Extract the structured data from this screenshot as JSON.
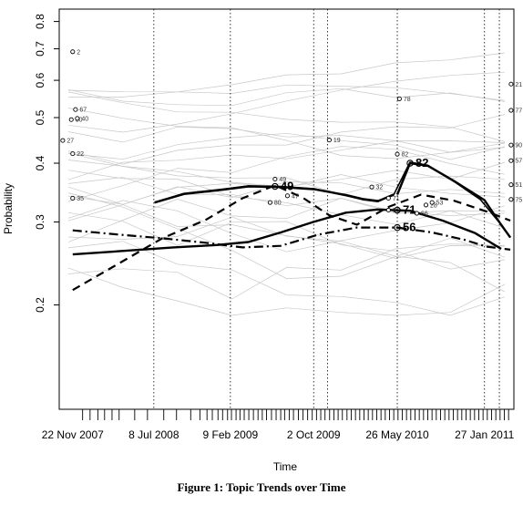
{
  "chart_data": {
    "type": "line",
    "xlabel": "Time",
    "ylabel": "Probability",
    "x_range": [
      "2007-10-15",
      "2011-04-20"
    ],
    "ylim": [
      0.12,
      0.85
    ],
    "y_scale": "log",
    "grid": false,
    "x_ticks": [
      {
        "date": "2007-11-22",
        "label": "22 Nov 2007"
      },
      {
        "date": "2008-07-08",
        "label": "8 Jul 2008"
      },
      {
        "date": "2009-02-09",
        "label": "9 Feb 2009"
      },
      {
        "date": "2009-10-02",
        "label": "2 Oct 2009"
      },
      {
        "date": "2010-05-26",
        "label": "26 May 2010"
      },
      {
        "date": "2011-01-27",
        "label": "27 Jan 2011"
      }
    ],
    "y_ticks": [
      {
        "value": 0.2,
        "label": "0.2"
      },
      {
        "value": 0.3,
        "label": "0.3"
      },
      {
        "value": 0.4,
        "label": "0.4"
      },
      {
        "value": 0.5,
        "label": "0.5"
      },
      {
        "value": 0.6,
        "label": "0.6"
      },
      {
        "value": 0.7,
        "label": "0.7"
      },
      {
        "value": 0.8,
        "label": "0.8"
      }
    ],
    "event_lines": [
      "2008-07-08",
      "2009-02-09",
      "2009-10-02",
      "2009-11-10",
      "2010-05-26",
      "2011-01-27",
      "2011-03-10"
    ],
    "series": [
      {
        "style": "solid-thin",
        "label": "",
        "points": [
          [
            "2008-07-10",
            0.33
          ],
          [
            "2008-10-01",
            0.345
          ],
          [
            "2009-01-15",
            0.352
          ],
          [
            "2009-04-01",
            0.358
          ],
          [
            "2009-07-01",
            0.357
          ],
          [
            "2009-10-05",
            0.353
          ],
          [
            "2009-11-20",
            0.347
          ],
          [
            "2010-01-01",
            0.343
          ],
          [
            "2010-02-20",
            0.336
          ],
          [
            "2010-04-01",
            0.333
          ],
          [
            "2010-05-15",
            0.342
          ],
          [
            "2010-07-01",
            0.402
          ],
          [
            "2010-08-20",
            0.396
          ],
          [
            "2010-11-01",
            0.366
          ],
          [
            "2011-01-15",
            0.335
          ],
          [
            "2011-03-15",
            0.296
          ],
          [
            "2011-04-10",
            0.278
          ]
        ]
      },
      {
        "style": "solid-thick",
        "label": "82",
        "points": [
          [
            "2010-05-26",
            0.343
          ],
          [
            "2010-07-01",
            0.4
          ],
          [
            "2010-08-20",
            0.395
          ],
          [
            "2010-11-01",
            0.367
          ],
          [
            "2011-01-27",
            0.334
          ],
          [
            "2011-03-15",
            0.296
          ],
          [
            "2011-04-10",
            0.278
          ]
        ]
      },
      {
        "style": "solid-thick",
        "label": "49",
        "points": [
          [
            "2008-07-10",
            0.33
          ],
          [
            "2008-10-01",
            0.344
          ],
          [
            "2009-01-15",
            0.351
          ],
          [
            "2009-04-01",
            0.357
          ],
          [
            "2009-07-01",
            0.356
          ],
          [
            "2009-10-05",
            0.352
          ],
          [
            "2009-11-20",
            0.347
          ],
          [
            "2010-01-01",
            0.342
          ],
          [
            "2010-02-20",
            0.335
          ],
          [
            "2010-04-01",
            0.332
          ],
          [
            "2010-05-15",
            0.343
          ]
        ]
      },
      {
        "style": "solid-thick",
        "label": "71",
        "points": [
          [
            "2007-11-22",
            0.256
          ],
          [
            "2008-04-01",
            0.26
          ],
          [
            "2008-09-01",
            0.265
          ],
          [
            "2009-01-01",
            0.268
          ],
          [
            "2009-04-01",
            0.272
          ],
          [
            "2009-07-01",
            0.285
          ],
          [
            "2009-10-01",
            0.3
          ],
          [
            "2010-01-01",
            0.314
          ],
          [
            "2010-04-01",
            0.319
          ],
          [
            "2010-07-01",
            0.317
          ],
          [
            "2010-10-01",
            0.302
          ],
          [
            "2011-01-01",
            0.284
          ],
          [
            "2011-03-15",
            0.263
          ]
        ]
      },
      {
        "style": "dashed",
        "label": "",
        "points": [
          [
            "2007-11-22",
            0.215
          ],
          [
            "2008-04-01",
            0.245
          ],
          [
            "2008-08-01",
            0.277
          ],
          [
            "2008-12-01",
            0.303
          ],
          [
            "2009-03-15",
            0.337
          ],
          [
            "2009-06-15",
            0.359
          ],
          [
            "2009-09-01",
            0.338
          ],
          [
            "2009-11-15",
            0.31
          ],
          [
            "2010-02-01",
            0.296
          ],
          [
            "2010-05-01",
            0.323
          ],
          [
            "2010-08-01",
            0.343
          ],
          [
            "2010-11-01",
            0.333
          ],
          [
            "2011-02-01",
            0.316
          ],
          [
            "2011-04-10",
            0.302
          ]
        ]
      },
      {
        "style": "dashdot",
        "label": "56",
        "points": [
          [
            "2007-11-22",
            0.288
          ],
          [
            "2008-04-01",
            0.282
          ],
          [
            "2008-08-01",
            0.277
          ],
          [
            "2008-12-01",
            0.271
          ],
          [
            "2009-03-15",
            0.265
          ],
          [
            "2009-07-01",
            0.267
          ],
          [
            "2009-10-15",
            0.282
          ],
          [
            "2010-02-01",
            0.292
          ],
          [
            "2010-05-26",
            0.292
          ],
          [
            "2010-09-01",
            0.285
          ],
          [
            "2010-12-01",
            0.275
          ],
          [
            "2011-02-01",
            0.266
          ],
          [
            "2011-04-10",
            0.262
          ]
        ]
      }
    ],
    "background_points": [
      {
        "label": "2",
        "date": "2007-11-22",
        "value": 0.69
      },
      {
        "label": "67",
        "date": "2007-11-30",
        "value": 0.52
      },
      {
        "label": "30",
        "date": "2007-11-18",
        "value": 0.495
      },
      {
        "label": "40",
        "date": "2007-12-05",
        "value": 0.498
      },
      {
        "label": "27",
        "date": "2007-10-25",
        "value": 0.447
      },
      {
        "label": "22",
        "date": "2007-11-22",
        "value": 0.419
      },
      {
        "label": "35",
        "date": "2007-11-22",
        "value": 0.337
      },
      {
        "label": "49",
        "date": "2009-06-15",
        "value": 0.37
      },
      {
        "label": "47",
        "date": "2009-07-20",
        "value": 0.341
      },
      {
        "label": "80",
        "date": "2009-06-01",
        "value": 0.33
      },
      {
        "label": "19",
        "date": "2009-11-15",
        "value": 0.448
      },
      {
        "label": "78",
        "date": "2010-06-01",
        "value": 0.548
      },
      {
        "label": "32",
        "date": "2010-03-15",
        "value": 0.356
      },
      {
        "label": "82",
        "date": "2010-05-26",
        "value": 0.418
      },
      {
        "label": "71",
        "date": "2010-05-01",
        "value": 0.337
      },
      {
        "label": "56",
        "date": "2010-05-01",
        "value": 0.318
      },
      {
        "label": "28",
        "date": "2010-08-15",
        "value": 0.326
      },
      {
        "label": "66",
        "date": "2010-07-20",
        "value": 0.313
      },
      {
        "label": "53",
        "date": "2010-09-01",
        "value": 0.33
      },
      {
        "label": "21",
        "date": "2011-04-12",
        "value": 0.589
      },
      {
        "label": "77",
        "date": "2011-04-12",
        "value": 0.518
      },
      {
        "label": "90",
        "date": "2011-04-12",
        "value": 0.437
      },
      {
        "label": "57",
        "date": "2011-04-12",
        "value": 0.405
      },
      {
        "label": "51",
        "date": "2011-04-12",
        "value": 0.36
      },
      {
        "label": "75",
        "date": "2011-04-12",
        "value": 0.335
      }
    ],
    "highlight_labels": [
      {
        "label": "49",
        "date": "2009-06-15",
        "value": 0.357
      },
      {
        "label": "82",
        "date": "2010-07-01",
        "value": 0.4
      },
      {
        "label": "71",
        "date": "2010-05-26",
        "value": 0.318
      },
      {
        "label": "56",
        "date": "2010-05-26",
        "value": 0.292
      }
    ],
    "rug_dates": [
      "2007-12-20",
      "2008-01-10",
      "2008-02-01",
      "2008-02-20",
      "2008-03-12",
      "2008-04-01",
      "2008-05-15",
      "2008-06-20",
      "2008-08-05",
      "2008-09-10",
      "2008-10-20",
      "2008-11-15",
      "2008-12-05",
      "2008-12-20",
      "2009-01-05",
      "2009-01-18",
      "2009-02-01",
      "2009-02-12",
      "2009-02-25",
      "2009-03-08",
      "2009-03-20",
      "2009-04-02",
      "2009-04-15",
      "2009-04-28",
      "2009-05-10",
      "2009-05-22",
      "2009-06-05",
      "2009-06-18",
      "2009-07-01",
      "2009-07-12",
      "2009-07-25",
      "2009-08-06",
      "2009-08-20",
      "2009-09-02",
      "2009-09-15",
      "2009-09-28",
      "2009-10-10",
      "2009-10-22",
      "2009-11-03",
      "2009-11-16",
      "2009-11-28",
      "2009-12-10",
      "2009-12-22",
      "2010-01-04",
      "2010-01-16",
      "2010-01-28",
      "2010-02-09",
      "2010-02-21",
      "2010-03-05",
      "2010-03-17",
      "2010-03-29",
      "2010-04-10",
      "2010-04-22",
      "2010-05-04",
      "2010-05-16",
      "2010-05-28",
      "2010-06-09",
      "2010-06-21",
      "2010-07-03",
      "2010-07-15",
      "2010-07-27",
      "2010-08-08",
      "2010-08-20",
      "2010-09-01",
      "2010-09-13",
      "2010-09-25",
      "2010-10-07",
      "2010-10-19",
      "2010-10-31",
      "2010-11-12",
      "2010-11-24",
      "2010-12-06",
      "2010-12-18",
      "2010-12-30",
      "2011-01-11",
      "2011-01-23",
      "2011-02-04",
      "2011-02-16",
      "2011-02-28",
      "2011-03-12",
      "2011-03-24",
      "2011-04-05"
    ]
  },
  "caption": "Figure 1: Topic Trends over Time"
}
